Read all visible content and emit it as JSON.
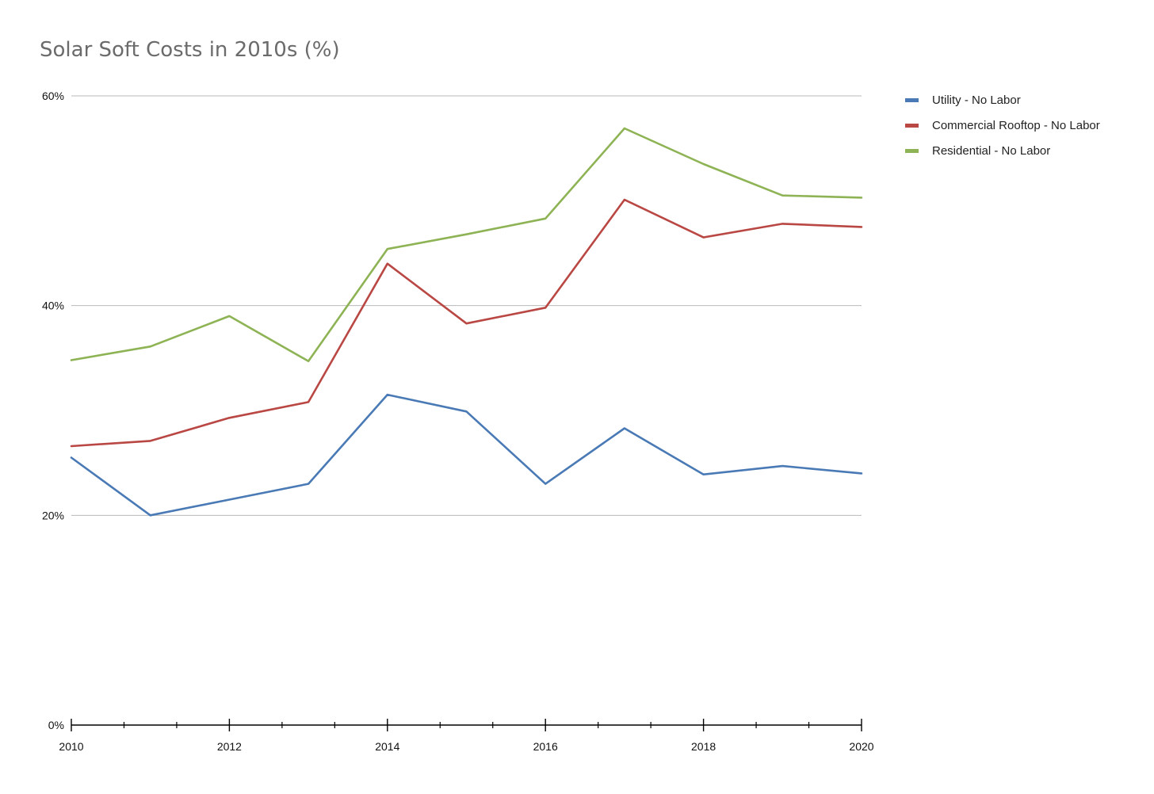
{
  "chart_data": {
    "type": "line",
    "title": "Solar Soft Costs in 2010s (%)",
    "xlabel": "",
    "ylabel": "",
    "x": [
      2010,
      2011,
      2012,
      2013,
      2014,
      2015,
      2016,
      2017,
      2018,
      2019,
      2020
    ],
    "xlim": [
      2010,
      2020
    ],
    "x_tick_labels": [
      "2010",
      "2012",
      "2014",
      "2016",
      "2018",
      "2020"
    ],
    "x_tick_values": [
      2010,
      2012,
      2014,
      2016,
      2018,
      2020
    ],
    "ylim": [
      0,
      60
    ],
    "y_tick_labels": [
      "0%",
      "20%",
      "40%",
      "60%"
    ],
    "y_tick_values": [
      0,
      20,
      40,
      60
    ],
    "grid": "horizontal",
    "legend_position": "right",
    "series": [
      {
        "name": "Utility - No Labor",
        "color": "#4a7ab5",
        "values": [
          25.5,
          20.0,
          21.5,
          23.0,
          31.5,
          29.9,
          23.0,
          28.3,
          23.9,
          24.7,
          24.0
        ]
      },
      {
        "name": "Commercial Rooftop - No Labor",
        "color": "#b94743",
        "values": [
          26.6,
          27.1,
          29.3,
          30.8,
          44.0,
          38.3,
          39.8,
          50.1,
          46.5,
          47.8,
          47.5
        ]
      },
      {
        "name": "Residential - No Labor",
        "color": "#8db354",
        "values": [
          34.8,
          36.1,
          39.0,
          34.7,
          45.4,
          46.8,
          48.3,
          56.9,
          53.5,
          50.5,
          50.3
        ]
      }
    ]
  }
}
